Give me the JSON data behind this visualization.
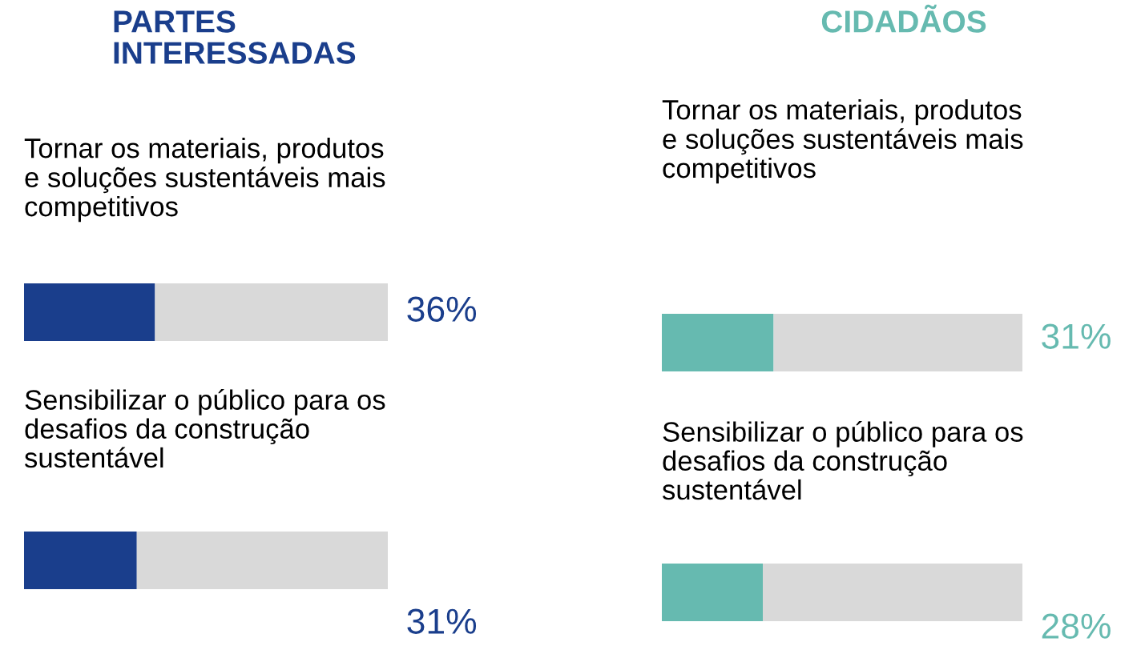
{
  "chart_data": [
    {
      "type": "bar",
      "orientation": "horizontal",
      "stacked": true,
      "title": "PARTES\nINTERESSADAS",
      "categories": [
        "Tornar os materiais, produtos\ne soluções sustentáveis mais\ncompetitivos",
        "Sensibilizar o público para os\ndesafios da construção\nsustentável"
      ],
      "series": [
        {
          "color": "#1a3e8c",
          "values": [
            36,
            31
          ],
          "value_labels": [
            "36%",
            "31%"
          ]
        },
        {
          "color": "#d9d9d9",
          "values": [
            64,
            69
          ]
        }
      ],
      "xlim": [
        0,
        100
      ],
      "legend": false
    },
    {
      "type": "bar",
      "orientation": "horizontal",
      "stacked": true,
      "title": "CIDADÃOS",
      "categories": [
        "Tornar os materiais, produtos\ne soluções sustentáveis mais\ncompetitivos",
        "Sensibilizar o público para os\ndesafios da construção\nsustentável"
      ],
      "series": [
        {
          "color": "#66bab0",
          "values": [
            31,
            28
          ],
          "value_labels": [
            "31%",
            "28%"
          ]
        },
        {
          "color": "#d9d9d9",
          "values": [
            69,
            72
          ]
        }
      ],
      "xlim": [
        0,
        100
      ],
      "legend": false
    }
  ]
}
